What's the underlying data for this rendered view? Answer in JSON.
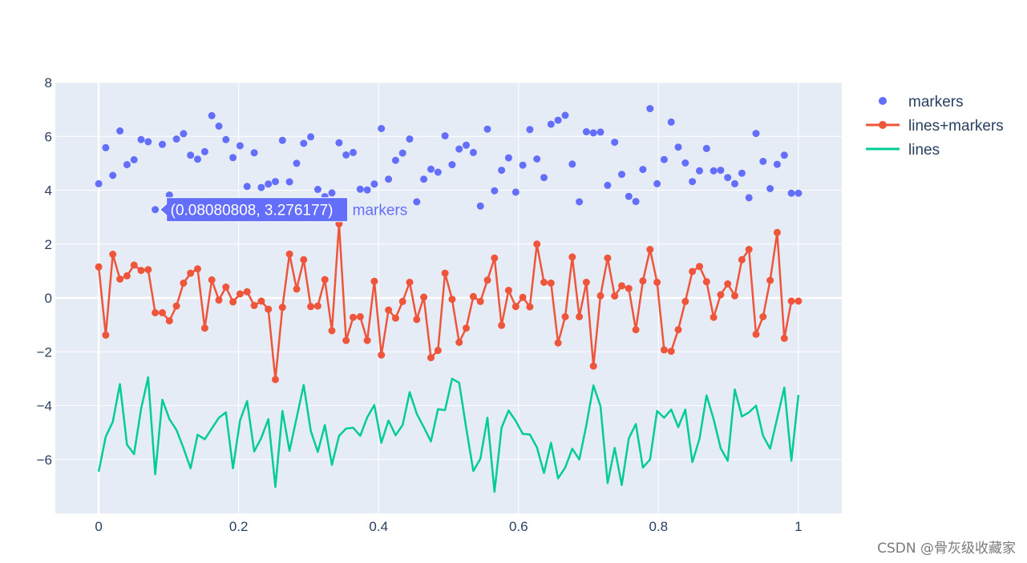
{
  "chart_data": {
    "type": "scatter",
    "title": "",
    "xlabel": "",
    "ylabel": "",
    "xlim": [
      -0.062,
      1.062
    ],
    "ylim": [
      -8.0,
      8.0
    ],
    "x_ticks": [
      0,
      0.2,
      0.4,
      0.6,
      0.8,
      1
    ],
    "x_tick_labels": [
      "0",
      "0.2",
      "0.4",
      "0.6",
      "0.8",
      "1"
    ],
    "y_ticks": [
      8,
      6,
      4,
      2,
      0,
      -2,
      -4,
      -6
    ],
    "y_tick_labels": [
      "8",
      "6",
      "4",
      "2",
      "0",
      "−2",
      "−4",
      "−6"
    ],
    "grid": true,
    "legend_position": "top-right, outside plot",
    "n_points": 100,
    "x": "100 evenly spaced values from 0 to 1",
    "series": [
      {
        "name": "markers",
        "mode": "markers",
        "color": "#636efa",
        "values": [
          4.24,
          5.58,
          4.55,
          6.2,
          4.95,
          5.13,
          5.88,
          5.8,
          3.28,
          5.7,
          3.82,
          5.9,
          6.1,
          5.3,
          5.15,
          5.43,
          6.77,
          6.38,
          5.88,
          5.21,
          5.65,
          4.14,
          5.39,
          4.1,
          4.23,
          4.32,
          5.85,
          4.31,
          5.0,
          5.74,
          5.98,
          4.03,
          3.76,
          3.9,
          5.76,
          5.31,
          5.4,
          4.04,
          4.01,
          4.23,
          6.29,
          4.41,
          5.11,
          5.38,
          5.9,
          3.57,
          4.41,
          4.78,
          4.67,
          6.02,
          4.95,
          5.53,
          5.67,
          5.4,
          3.41,
          6.27,
          3.98,
          4.74,
          5.2,
          3.93,
          4.93,
          6.25,
          5.16,
          4.47,
          6.45,
          6.6,
          6.78,
          4.97,
          3.57,
          6.17,
          6.13,
          6.16,
          4.18,
          5.78,
          4.59,
          3.77,
          3.58,
          4.77,
          7.03,
          4.24,
          5.14,
          6.53,
          5.6,
          5.01,
          4.32,
          4.72,
          5.55,
          4.72,
          4.74,
          4.47,
          4.24,
          4.63,
          3.72,
          6.11,
          5.07,
          4.06,
          4.96,
          5.3,
          3.89,
          3.89
        ]
      },
      {
        "name": "lines+markers",
        "mode": "lines+markers",
        "color": "#ef553b",
        "values": [
          1.15,
          -1.38,
          1.62,
          0.7,
          0.82,
          1.22,
          1.02,
          1.05,
          -0.55,
          -0.55,
          -0.85,
          -0.3,
          0.55,
          0.92,
          1.08,
          -1.12,
          0.67,
          -0.08,
          0.4,
          -0.15,
          0.15,
          0.23,
          -0.28,
          -0.12,
          -0.42,
          -3.03,
          -0.35,
          1.63,
          0.33,
          1.42,
          -0.32,
          -0.3,
          0.68,
          -1.22,
          2.75,
          -1.58,
          -0.72,
          -0.7,
          -1.58,
          0.62,
          -2.12,
          -0.45,
          -0.75,
          -0.13,
          0.58,
          -0.8,
          0.03,
          -2.22,
          -1.95,
          0.92,
          -0.05,
          -1.65,
          -1.12,
          0.05,
          -0.13,
          0.66,
          1.48,
          -1.02,
          0.28,
          -0.32,
          0.02,
          -0.33,
          2.0,
          0.58,
          0.55,
          -1.67,
          -0.7,
          1.52,
          -0.7,
          0.58,
          -2.53,
          0.08,
          1.48,
          0.07,
          0.45,
          0.35,
          -1.18,
          0.63,
          1.8,
          0.58,
          -1.93,
          -1.98,
          -1.18,
          -0.13,
          0.98,
          1.17,
          0.6,
          -0.72,
          0.12,
          0.52,
          0.08,
          1.42,
          1.8,
          -1.35,
          -0.7,
          0.65,
          2.43,
          -1.5,
          -0.12,
          -0.12
        ]
      },
      {
        "name": "lines",
        "mode": "lines",
        "color": "#00cc96",
        "values": [
          -6.45,
          -5.15,
          -4.6,
          -3.2,
          -5.45,
          -5.8,
          -4.12,
          -2.95,
          -6.55,
          -3.78,
          -4.5,
          -4.9,
          -5.58,
          -6.33,
          -5.08,
          -5.25,
          -4.85,
          -4.45,
          -4.25,
          -6.33,
          -4.55,
          -3.83,
          -5.7,
          -5.2,
          -4.5,
          -7.02,
          -4.2,
          -5.68,
          -4.45,
          -3.23,
          -4.93,
          -5.72,
          -4.72,
          -6.2,
          -5.12,
          -4.85,
          -4.82,
          -5.12,
          -4.43,
          -3.98,
          -5.38,
          -4.55,
          -5.1,
          -4.72,
          -3.5,
          -4.3,
          -4.8,
          -5.33,
          -4.13,
          -4.17,
          -3.0,
          -3.15,
          -4.83,
          -6.43,
          -5.97,
          -4.45,
          -7.2,
          -4.82,
          -4.18,
          -4.57,
          -5.05,
          -5.07,
          -5.55,
          -6.5,
          -5.38,
          -6.7,
          -6.3,
          -5.6,
          -6.0,
          -4.72,
          -3.25,
          -4.02,
          -6.88,
          -5.57,
          -6.95,
          -5.22,
          -4.68,
          -6.3,
          -6.0,
          -4.2,
          -4.45,
          -4.15,
          -4.8,
          -4.15,
          -6.1,
          -5.23,
          -3.62,
          -4.5,
          -5.58,
          -6.05,
          -3.4,
          -4.4,
          -4.25,
          -4.0,
          -5.12,
          -5.6,
          -4.47,
          -3.33,
          -6.05,
          -3.6
        ]
      }
    ]
  },
  "legend": {
    "items": [
      {
        "label": "markers",
        "color": "#636efa",
        "symbol": "marker"
      },
      {
        "label": "lines+markers",
        "color": "#ef553b",
        "symbol": "line-marker"
      },
      {
        "label": "lines",
        "color": "#00cc96",
        "symbol": "line"
      }
    ]
  },
  "hover": {
    "series_index": 0,
    "point_index": 8,
    "text": "(0.08080808, 3.276177)",
    "series_label": "markers",
    "color": "#636efa"
  },
  "watermark": {
    "text": "CSDN @骨灰级收藏家"
  },
  "colors": {
    "plot_bg": "#e5ecf6",
    "grid": "#ffffff",
    "tick_text": "#2a3f5f"
  }
}
